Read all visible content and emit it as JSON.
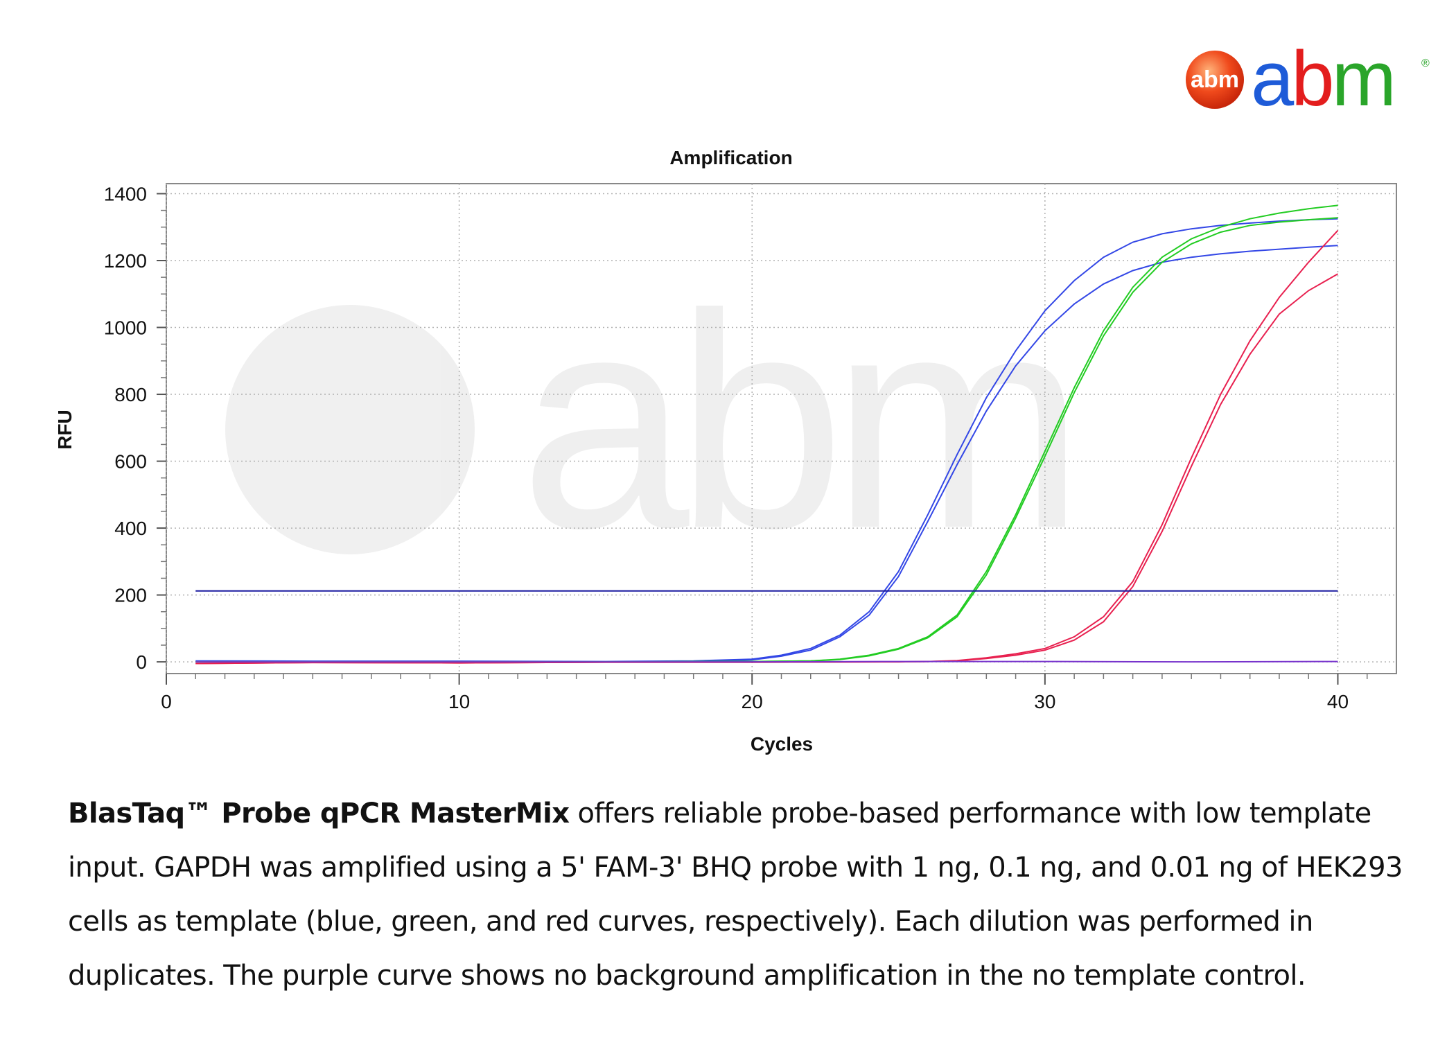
{
  "brand": {
    "badge_text": "abm",
    "wordmark": "abm",
    "registered": "®",
    "colors": {
      "a": "#1e5bd8",
      "b": "#e31d1d",
      "m": "#2aa52a",
      "badge": "#f04a1c"
    }
  },
  "caption": {
    "product": "BlasTaq™ Probe qPCR MasterMix",
    "text": " offers reliable probe-based performance with low template input. GAPDH was amplified using a 5' FAM-3' BHQ probe with 1 ng, 0.1 ng, and 0.01 ng of HEK293 cells as template (blue, green, and red curves, respectively). Each dilution was performed in duplicates. The purple curve shows no background amplification in the no template control."
  },
  "chart_data": {
    "type": "line",
    "title": "Amplification",
    "xlabel": "Cycles",
    "ylabel": "RFU",
    "xlim": [
      0,
      42
    ],
    "ylim": [
      -35,
      1430
    ],
    "xticks": [
      0,
      10,
      20,
      30,
      40
    ],
    "yticks": [
      0,
      200,
      400,
      600,
      800,
      1000,
      1200,
      1400
    ],
    "grid": true,
    "legend": "none",
    "threshold": {
      "value": 212,
      "x": [
        1,
        40
      ],
      "color": "#1a1aa0"
    },
    "series": [
      {
        "color": "#3347e6",
        "x": [
          1,
          5,
          10,
          15,
          18,
          20,
          21,
          22,
          23,
          24,
          25,
          26,
          27,
          28,
          29,
          30,
          31,
          32,
          33,
          34,
          35,
          36,
          37,
          38,
          39,
          40
        ],
        "y": [
          3,
          2,
          2,
          1,
          3,
          8,
          20,
          40,
          80,
          150,
          270,
          440,
          620,
          790,
          930,
          1050,
          1140,
          1210,
          1255,
          1280,
          1295,
          1305,
          1312,
          1318,
          1322,
          1325
        ]
      },
      {
        "color": "#3347e6",
        "x": [
          1,
          5,
          10,
          15,
          18,
          20,
          21,
          22,
          23,
          24,
          25,
          26,
          27,
          28,
          29,
          30,
          31,
          32,
          33,
          34,
          35,
          36,
          37,
          38,
          39,
          40
        ],
        "y": [
          2,
          1,
          1,
          0,
          2,
          6,
          17,
          35,
          75,
          140,
          255,
          420,
          590,
          750,
          885,
          990,
          1070,
          1130,
          1170,
          1195,
          1210,
          1220,
          1228,
          1234,
          1240,
          1245
        ]
      },
      {
        "color": "#22cc22",
        "x": [
          1,
          5,
          10,
          15,
          20,
          22,
          23,
          24,
          25,
          26,
          27,
          28,
          29,
          30,
          31,
          32,
          33,
          34,
          35,
          36,
          37,
          38,
          39,
          40
        ],
        "y": [
          0,
          0,
          0,
          0,
          1,
          3,
          8,
          20,
          40,
          75,
          140,
          270,
          440,
          630,
          820,
          990,
          1120,
          1210,
          1265,
          1300,
          1325,
          1342,
          1355,
          1365
        ]
      },
      {
        "color": "#22cc22",
        "x": [
          1,
          5,
          10,
          15,
          20,
          22,
          23,
          24,
          25,
          26,
          27,
          28,
          29,
          30,
          31,
          32,
          33,
          34,
          35,
          36,
          37,
          38,
          39,
          40
        ],
        "y": [
          0,
          0,
          0,
          0,
          1,
          3,
          7,
          18,
          38,
          72,
          135,
          260,
          430,
          615,
          805,
          975,
          1105,
          1195,
          1250,
          1285,
          1305,
          1315,
          1322,
          1328
        ]
      },
      {
        "color": "#e8204f",
        "x": [
          1,
          5,
          10,
          15,
          20,
          25,
          26,
          27,
          28,
          29,
          30,
          31,
          32,
          33,
          34,
          35,
          36,
          37,
          38,
          39,
          40
        ],
        "y": [
          -5,
          -2,
          -3,
          -1,
          -1,
          0,
          1,
          4,
          12,
          24,
          40,
          75,
          135,
          240,
          410,
          610,
          800,
          960,
          1090,
          1195,
          1290
        ]
      },
      {
        "color": "#e8204f",
        "x": [
          1,
          5,
          10,
          15,
          20,
          25,
          26,
          27,
          28,
          29,
          30,
          31,
          32,
          33,
          34,
          35,
          36,
          37,
          38,
          39,
          40
        ],
        "y": [
          -5,
          -2,
          -3,
          -1,
          -1,
          0,
          1,
          3,
          10,
          20,
          35,
          65,
          120,
          225,
          390,
          585,
          770,
          920,
          1040,
          1110,
          1160
        ]
      },
      {
        "color": "#7733cc",
        "x": [
          1,
          5,
          10,
          15,
          20,
          25,
          30,
          35,
          40
        ],
        "y": [
          0,
          0,
          0,
          0,
          0,
          1,
          1,
          0,
          1
        ]
      }
    ]
  }
}
